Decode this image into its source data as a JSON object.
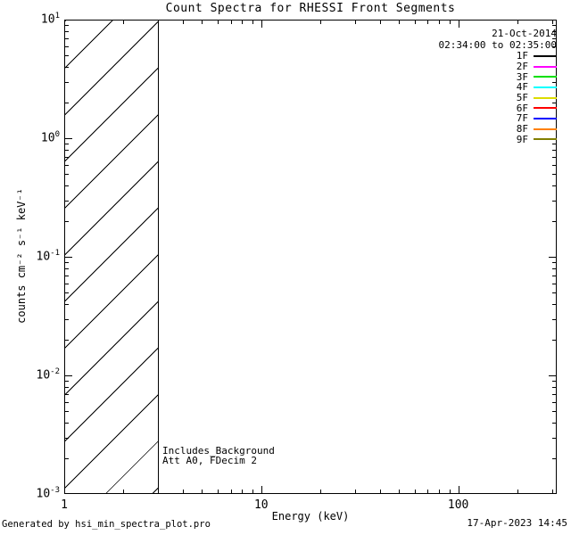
{
  "title": "Count Spectra for RHESSI Front Segments",
  "legend": {
    "date": "21-Oct-2014",
    "time_range": "02:34:00 to 02:35:00",
    "entries": [
      {
        "label": "1F",
        "color": "#000000"
      },
      {
        "label": "2F",
        "color": "#FF00FF"
      },
      {
        "label": "3F",
        "color": "#00E000"
      },
      {
        "label": "4F",
        "color": "#00FFFF"
      },
      {
        "label": "5F",
        "color": "#DCDC00"
      },
      {
        "label": "6F",
        "color": "#FF0000"
      },
      {
        "label": "7F",
        "color": "#0000FF"
      },
      {
        "label": "8F",
        "color": "#FF8000"
      },
      {
        "label": "9F",
        "color": "#827F00"
      }
    ]
  },
  "annotations": {
    "background_note": "Includes_Background",
    "attenuator_note": "Att A0, FDecim 2"
  },
  "footer": {
    "generated_by": "Generated by hsi_min_spectra_plot.pro",
    "timestamp": "17-Apr-2023 14:45"
  },
  "chart_data": {
    "type": "line",
    "title": "Count Spectra for RHESSI Front Segments",
    "xlabel": "Energy (keV)",
    "ylabel": "counts cm⁻² s⁻¹ keV⁻¹",
    "x_scale": "log",
    "y_scale": "log",
    "xlim": [
      1,
      316
    ],
    "ylim": [
      0.001,
      10
    ],
    "x_major_ticks": [
      1,
      10,
      100
    ],
    "x_tick_labels": [
      "1",
      "10",
      "100"
    ],
    "y_major_ticks": [
      10,
      1,
      0.1,
      0.01,
      0.001
    ],
    "y_tick_exponents": [
      1,
      0,
      -1,
      -2,
      -3
    ],
    "grid": false,
    "legend_position": "top-right-inside",
    "hatched_region": {
      "x_start": 1,
      "x_end": 3,
      "style": "diagonal-hatch"
    },
    "series": [
      {
        "name": "1F",
        "color": "#000000",
        "values": []
      },
      {
        "name": "2F",
        "color": "#FF00FF",
        "values": []
      },
      {
        "name": "3F",
        "color": "#00E000",
        "values": []
      },
      {
        "name": "4F",
        "color": "#00FFFF",
        "values": []
      },
      {
        "name": "5F",
        "color": "#DCDC00",
        "values": []
      },
      {
        "name": "6F",
        "color": "#FF0000",
        "values": []
      },
      {
        "name": "7F",
        "color": "#0000FF",
        "values": []
      },
      {
        "name": "8F",
        "color": "#FF8000",
        "values": []
      },
      {
        "name": "9F",
        "color": "#827F00",
        "values": []
      }
    ]
  }
}
